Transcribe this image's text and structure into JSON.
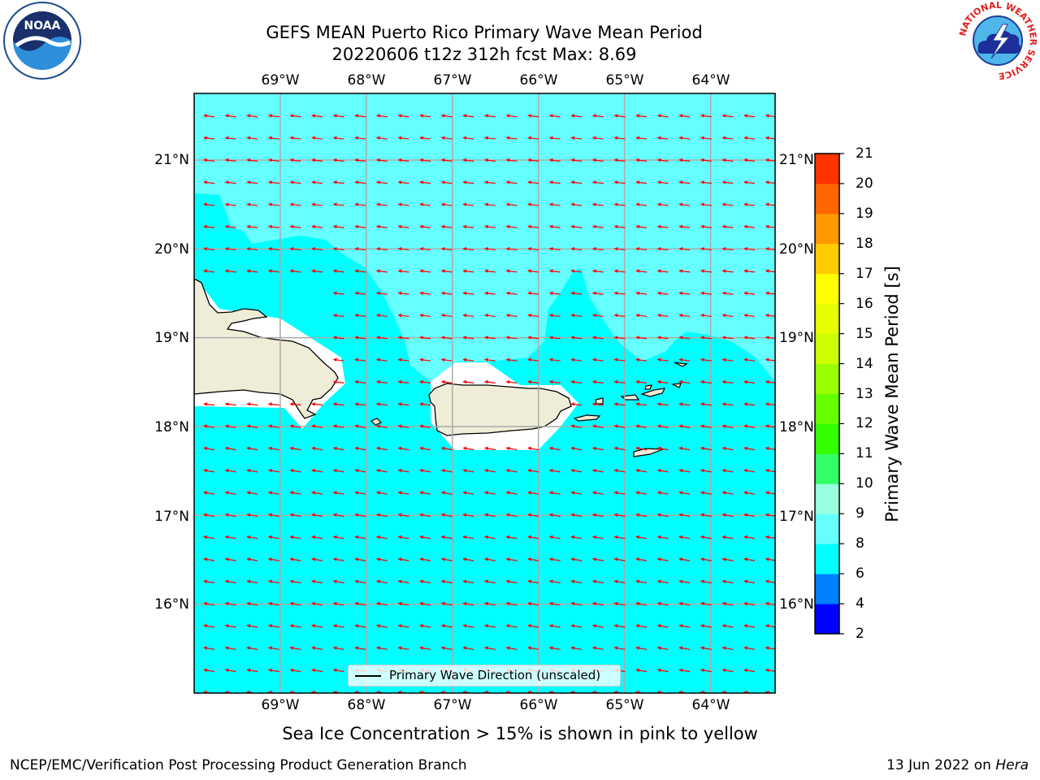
{
  "title": {
    "line1": "GEFS MEAN Puerto Rico Primary Wave Mean Period",
    "line2": "20220606 t12z 312h fcst   Max: 8.69"
  },
  "logos": {
    "left": "noaa-logo",
    "left_text": "NOAA",
    "right": "nws-logo",
    "right_text": "NATIONAL WEATHER SERVICE"
  },
  "map": {
    "lon_labels": [
      "69°W",
      "68°W",
      "67°W",
      "66°W",
      "65°W",
      "64°W"
    ],
    "lat_labels": [
      "21°N",
      "20°N",
      "19°N",
      "18°N",
      "17°N",
      "16°N"
    ],
    "lon_range": [
      -70.0,
      -63.25
    ],
    "lat_range": [
      15.0,
      21.75
    ],
    "grid": true,
    "land_color": "#efedd8",
    "coast_color": "#000000",
    "arrow_color": "#ff0000",
    "ocean_colors": {
      "6-8": "#00ffff",
      "8-9": "#66ffff"
    }
  },
  "legend": {
    "text": "Primary Wave Direction (unscaled)"
  },
  "colorbar": {
    "label": "Primary Wave Mean Period [s]",
    "ticks": [
      "2",
      "4",
      "6",
      "8",
      "9",
      "10",
      "11",
      "12",
      "13",
      "14",
      "15",
      "16",
      "17",
      "18",
      "19",
      "20",
      "21"
    ],
    "colors": [
      "#0000ff",
      "#0080ff",
      "#00ffff",
      "#66ffff",
      "#99ffe0",
      "#33ff66",
      "#33ff00",
      "#66ff00",
      "#99ff00",
      "#ccff00",
      "#e6ff00",
      "#ffff00",
      "#ffcc00",
      "#ff9900",
      "#ff6600",
      "#ff3300",
      "#ff0000"
    ]
  },
  "caption": "Sea Ice Concentration > 15% is shown in pink to yellow",
  "footer": {
    "left": "NCEP/EMC/Verification Post Processing Product Generation Branch",
    "right_prefix": "13 Jun 2022 on ",
    "right_host": "Hera"
  }
}
